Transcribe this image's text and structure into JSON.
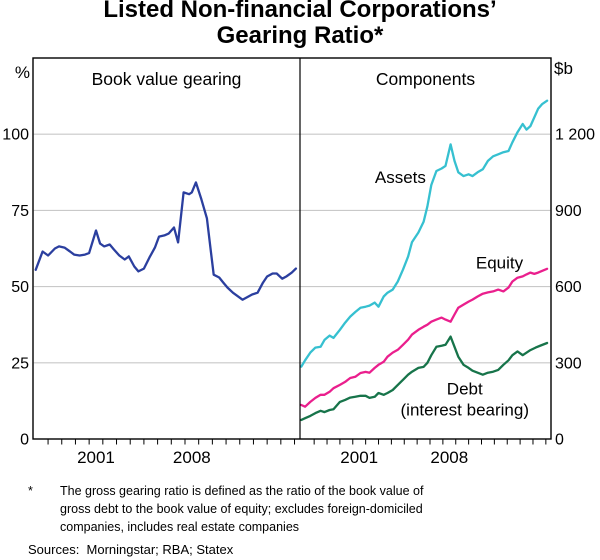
{
  "title": {
    "line1": "Listed Non-financial Corporations’",
    "line2": "Gearing Ratio*"
  },
  "colors": {
    "gearing": "#2b3f9f",
    "assets": "#36c0d0",
    "equity": "#ea1f8d",
    "debt": "#17744a",
    "gridline": "#c9c9c9",
    "frame": "#000000"
  },
  "chart_data": [
    {
      "type": "line",
      "panel": "left",
      "title": "Book value gearing",
      "ylabel": "%",
      "ylim": [
        0,
        125
      ],
      "yticks": [
        0,
        25,
        50,
        75,
        100
      ],
      "ytick_labels": [
        "0",
        "25",
        "50",
        "75",
        "100"
      ],
      "xlim": [
        1996.9,
        2016.4
      ],
      "grid": true,
      "year_labels": [
        {
          "label": "2001",
          "x": 2001.5
        },
        {
          "label": "2008",
          "x": 2008.5
        }
      ],
      "series": [
        {
          "name": "Book value gearing",
          "color": "#2b3f9f",
          "points": [
            [
              1997.1,
              55.5
            ],
            [
              1997.6,
              61.5
            ],
            [
              1998.0,
              60.2
            ],
            [
              1998.5,
              62.5
            ],
            [
              1998.8,
              63.2
            ],
            [
              1999.2,
              62.8
            ],
            [
              1999.6,
              61.5
            ],
            [
              1999.9,
              60.5
            ],
            [
              2000.3,
              60.2
            ],
            [
              2000.7,
              60.5
            ],
            [
              2001.0,
              61.0
            ],
            [
              2001.5,
              68.4
            ],
            [
              2001.8,
              64.1
            ],
            [
              2002.1,
              63.2
            ],
            [
              2002.5,
              63.8
            ],
            [
              2002.8,
              62.2
            ],
            [
              2003.2,
              60.2
            ],
            [
              2003.6,
              58.9
            ],
            [
              2003.9,
              59.9
            ],
            [
              2004.3,
              56.6
            ],
            [
              2004.6,
              55.0
            ],
            [
              2005.0,
              55.9
            ],
            [
              2005.4,
              59.5
            ],
            [
              2005.8,
              62.8
            ],
            [
              2006.1,
              66.4
            ],
            [
              2006.5,
              66.8
            ],
            [
              2006.8,
              67.4
            ],
            [
              2007.2,
              69.4
            ],
            [
              2007.5,
              64.5
            ],
            [
              2007.9,
              80.9
            ],
            [
              2008.3,
              80.3
            ],
            [
              2008.5,
              80.9
            ],
            [
              2008.8,
              84.2
            ],
            [
              2009.2,
              78.6
            ],
            [
              2009.6,
              72.4
            ],
            [
              2009.9,
              61.2
            ],
            [
              2010.1,
              53.9
            ],
            [
              2010.5,
              53.0
            ],
            [
              2010.8,
              51.3
            ],
            [
              2011.1,
              49.7
            ],
            [
              2011.5,
              48.0
            ],
            [
              2011.9,
              46.7
            ],
            [
              2012.2,
              45.7
            ],
            [
              2012.6,
              46.7
            ],
            [
              2012.9,
              47.4
            ],
            [
              2013.3,
              48.0
            ],
            [
              2013.7,
              51.3
            ],
            [
              2014.0,
              53.3
            ],
            [
              2014.4,
              54.3
            ],
            [
              2014.7,
              54.3
            ],
            [
              2015.1,
              52.6
            ],
            [
              2015.4,
              53.3
            ],
            [
              2015.8,
              54.6
            ],
            [
              2016.1,
              55.9
            ]
          ]
        }
      ],
      "annotations": []
    },
    {
      "type": "line",
      "panel": "right",
      "title": "Components",
      "ylabel": "$b",
      "ylim": [
        0,
        1500
      ],
      "yticks": [
        0,
        300,
        600,
        900,
        1200
      ],
      "ytick_labels": [
        "0",
        "300",
        "600",
        "900",
        "1 200"
      ],
      "xlim": [
        1996.9,
        2016.4
      ],
      "grid": true,
      "year_labels": [
        {
          "label": "2001",
          "x": 2001.5
        },
        {
          "label": "2008",
          "x": 2008.5
        }
      ],
      "series": [
        {
          "name": "Assets",
          "color": "#36c0d0",
          "points": [
            [
              1997.0,
              285
            ],
            [
              1997.3,
              310
            ],
            [
              1997.7,
              340
            ],
            [
              1998.1,
              360
            ],
            [
              1998.5,
              363
            ],
            [
              1998.8,
              390
            ],
            [
              1999.2,
              407
            ],
            [
              1999.5,
              398
            ],
            [
              2000.0,
              430
            ],
            [
              2000.4,
              458
            ],
            [
              2000.8,
              482
            ],
            [
              2001.2,
              500
            ],
            [
              2001.6,
              517
            ],
            [
              2002.0,
              521
            ],
            [
              2002.3,
              525
            ],
            [
              2002.7,
              537
            ],
            [
              2003.0,
              521
            ],
            [
              2003.4,
              561
            ],
            [
              2003.7,
              576
            ],
            [
              2004.1,
              588
            ],
            [
              2004.5,
              620
            ],
            [
              2004.9,
              667
            ],
            [
              2005.3,
              718
            ],
            [
              2005.6,
              775
            ],
            [
              2006.1,
              813
            ],
            [
              2006.5,
              855
            ],
            [
              2006.8,
              916
            ],
            [
              2007.1,
              1000
            ],
            [
              2007.5,
              1055
            ],
            [
              2007.9,
              1065
            ],
            [
              2008.2,
              1075
            ],
            [
              2008.6,
              1160
            ],
            [
              2008.9,
              1095
            ],
            [
              2009.2,
              1050
            ],
            [
              2009.6,
              1035
            ],
            [
              2010.0,
              1042
            ],
            [
              2010.3,
              1035
            ],
            [
              2010.7,
              1050
            ],
            [
              2011.1,
              1062
            ],
            [
              2011.5,
              1095
            ],
            [
              2011.9,
              1113
            ],
            [
              2012.3,
              1121
            ],
            [
              2012.7,
              1129
            ],
            [
              2013.1,
              1134
            ],
            [
              2013.4,
              1168
            ],
            [
              2013.8,
              1208
            ],
            [
              2014.2,
              1240
            ],
            [
              2014.5,
              1218
            ],
            [
              2014.8,
              1232
            ],
            [
              2015.1,
              1266
            ],
            [
              2015.4,
              1300
            ],
            [
              2015.7,
              1318
            ],
            [
              2016.1,
              1332
            ]
          ]
        },
        {
          "name": "Equity",
          "color": "#ea1f8d",
          "points": [
            [
              1997.0,
              134
            ],
            [
              1997.3,
              127
            ],
            [
              1997.7,
              146
            ],
            [
              1998.1,
              162
            ],
            [
              1998.5,
              174
            ],
            [
              1998.8,
              174
            ],
            [
              1999.2,
              186
            ],
            [
              1999.5,
              200
            ],
            [
              2000.0,
              213
            ],
            [
              2000.4,
              225
            ],
            [
              2000.8,
              240
            ],
            [
              2001.2,
              245
            ],
            [
              2001.6,
              260
            ],
            [
              2002.0,
              264
            ],
            [
              2002.3,
              261
            ],
            [
              2002.7,
              280
            ],
            [
              2003.0,
              292
            ],
            [
              2003.4,
              304
            ],
            [
              2003.7,
              324
            ],
            [
              2004.1,
              340
            ],
            [
              2004.5,
              351
            ],
            [
              2004.9,
              371
            ],
            [
              2005.3,
              391
            ],
            [
              2005.6,
              411
            ],
            [
              2006.1,
              430
            ],
            [
              2006.5,
              442
            ],
            [
              2006.8,
              450
            ],
            [
              2007.1,
              462
            ],
            [
              2007.5,
              470
            ],
            [
              2007.9,
              478
            ],
            [
              2008.2,
              470
            ],
            [
              2008.6,
              462
            ],
            [
              2008.9,
              490
            ],
            [
              2009.2,
              517
            ],
            [
              2009.6,
              529
            ],
            [
              2010.0,
              541
            ],
            [
              2010.3,
              549
            ],
            [
              2010.7,
              561
            ],
            [
              2011.1,
              572
            ],
            [
              2011.5,
              577
            ],
            [
              2011.9,
              581
            ],
            [
              2012.3,
              588
            ],
            [
              2012.7,
              581
            ],
            [
              2013.1,
              596
            ],
            [
              2013.4,
              620
            ],
            [
              2013.8,
              635
            ],
            [
              2014.2,
              640
            ],
            [
              2014.5,
              648
            ],
            [
              2014.8,
              655
            ],
            [
              2015.1,
              650
            ],
            [
              2015.4,
              655
            ],
            [
              2015.7,
              662
            ],
            [
              2016.1,
              670
            ]
          ]
        },
        {
          "name": "Debt",
          "color": "#17744a",
          "points": [
            [
              1997.0,
              75
            ],
            [
              1997.3,
              82
            ],
            [
              1997.7,
              91
            ],
            [
              1998.1,
              102
            ],
            [
              1998.5,
              111
            ],
            [
              1998.8,
              106
            ],
            [
              1999.2,
              114
            ],
            [
              1999.5,
              117
            ],
            [
              2000.0,
              146
            ],
            [
              2000.4,
              154
            ],
            [
              2000.8,
              163
            ],
            [
              2001.2,
              166
            ],
            [
              2001.6,
              170
            ],
            [
              2002.0,
              170
            ],
            [
              2002.3,
              162
            ],
            [
              2002.7,
              166
            ],
            [
              2003.0,
              181
            ],
            [
              2003.4,
              174
            ],
            [
              2003.7,
              181
            ],
            [
              2004.1,
              193
            ],
            [
              2004.5,
              213
            ],
            [
              2004.9,
              233
            ],
            [
              2005.3,
              253
            ],
            [
              2005.6,
              265
            ],
            [
              2006.1,
              280
            ],
            [
              2006.5,
              284
            ],
            [
              2006.8,
              300
            ],
            [
              2007.1,
              330
            ],
            [
              2007.5,
              363
            ],
            [
              2007.9,
              367
            ],
            [
              2008.2,
              371
            ],
            [
              2008.6,
              403
            ],
            [
              2008.9,
              363
            ],
            [
              2009.2,
              324
            ],
            [
              2009.6,
              292
            ],
            [
              2010.0,
              280
            ],
            [
              2010.3,
              269
            ],
            [
              2010.7,
              261
            ],
            [
              2011.1,
              253
            ],
            [
              2011.5,
              261
            ],
            [
              2011.9,
              265
            ],
            [
              2012.3,
              272
            ],
            [
              2012.7,
              292
            ],
            [
              2013.1,
              310
            ],
            [
              2013.4,
              330
            ],
            [
              2013.8,
              345
            ],
            [
              2014.2,
              330
            ],
            [
              2014.8,
              350
            ],
            [
              2015.2,
              360
            ],
            [
              2015.6,
              368
            ],
            [
              2016.1,
              378
            ]
          ]
        }
      ],
      "annotations": [
        {
          "id": "assets",
          "lines": [
            "Assets"
          ],
          "year": 2004.7,
          "value": 1008,
          "color": "#36c0d0"
        },
        {
          "id": "equity",
          "lines": [
            "Equity"
          ],
          "year": 2012.4,
          "value": 672,
          "color": "#ea1f8d"
        },
        {
          "id": "debt",
          "lines": [
            "Debt",
            "(interest bearing)"
          ],
          "year": 2009.7,
          "value": 175,
          "color": "#17744a"
        }
      ]
    }
  ],
  "footnote": {
    "marker": "*",
    "lines": [
      "The gross gearing ratio is defined as the ratio of the book value of",
      "gross debt to the book value of equity; excludes foreign-domiciled",
      "companies, includes real estate companies"
    ]
  },
  "sources_line": "Sources:  Morningstar; RBA; Statex"
}
